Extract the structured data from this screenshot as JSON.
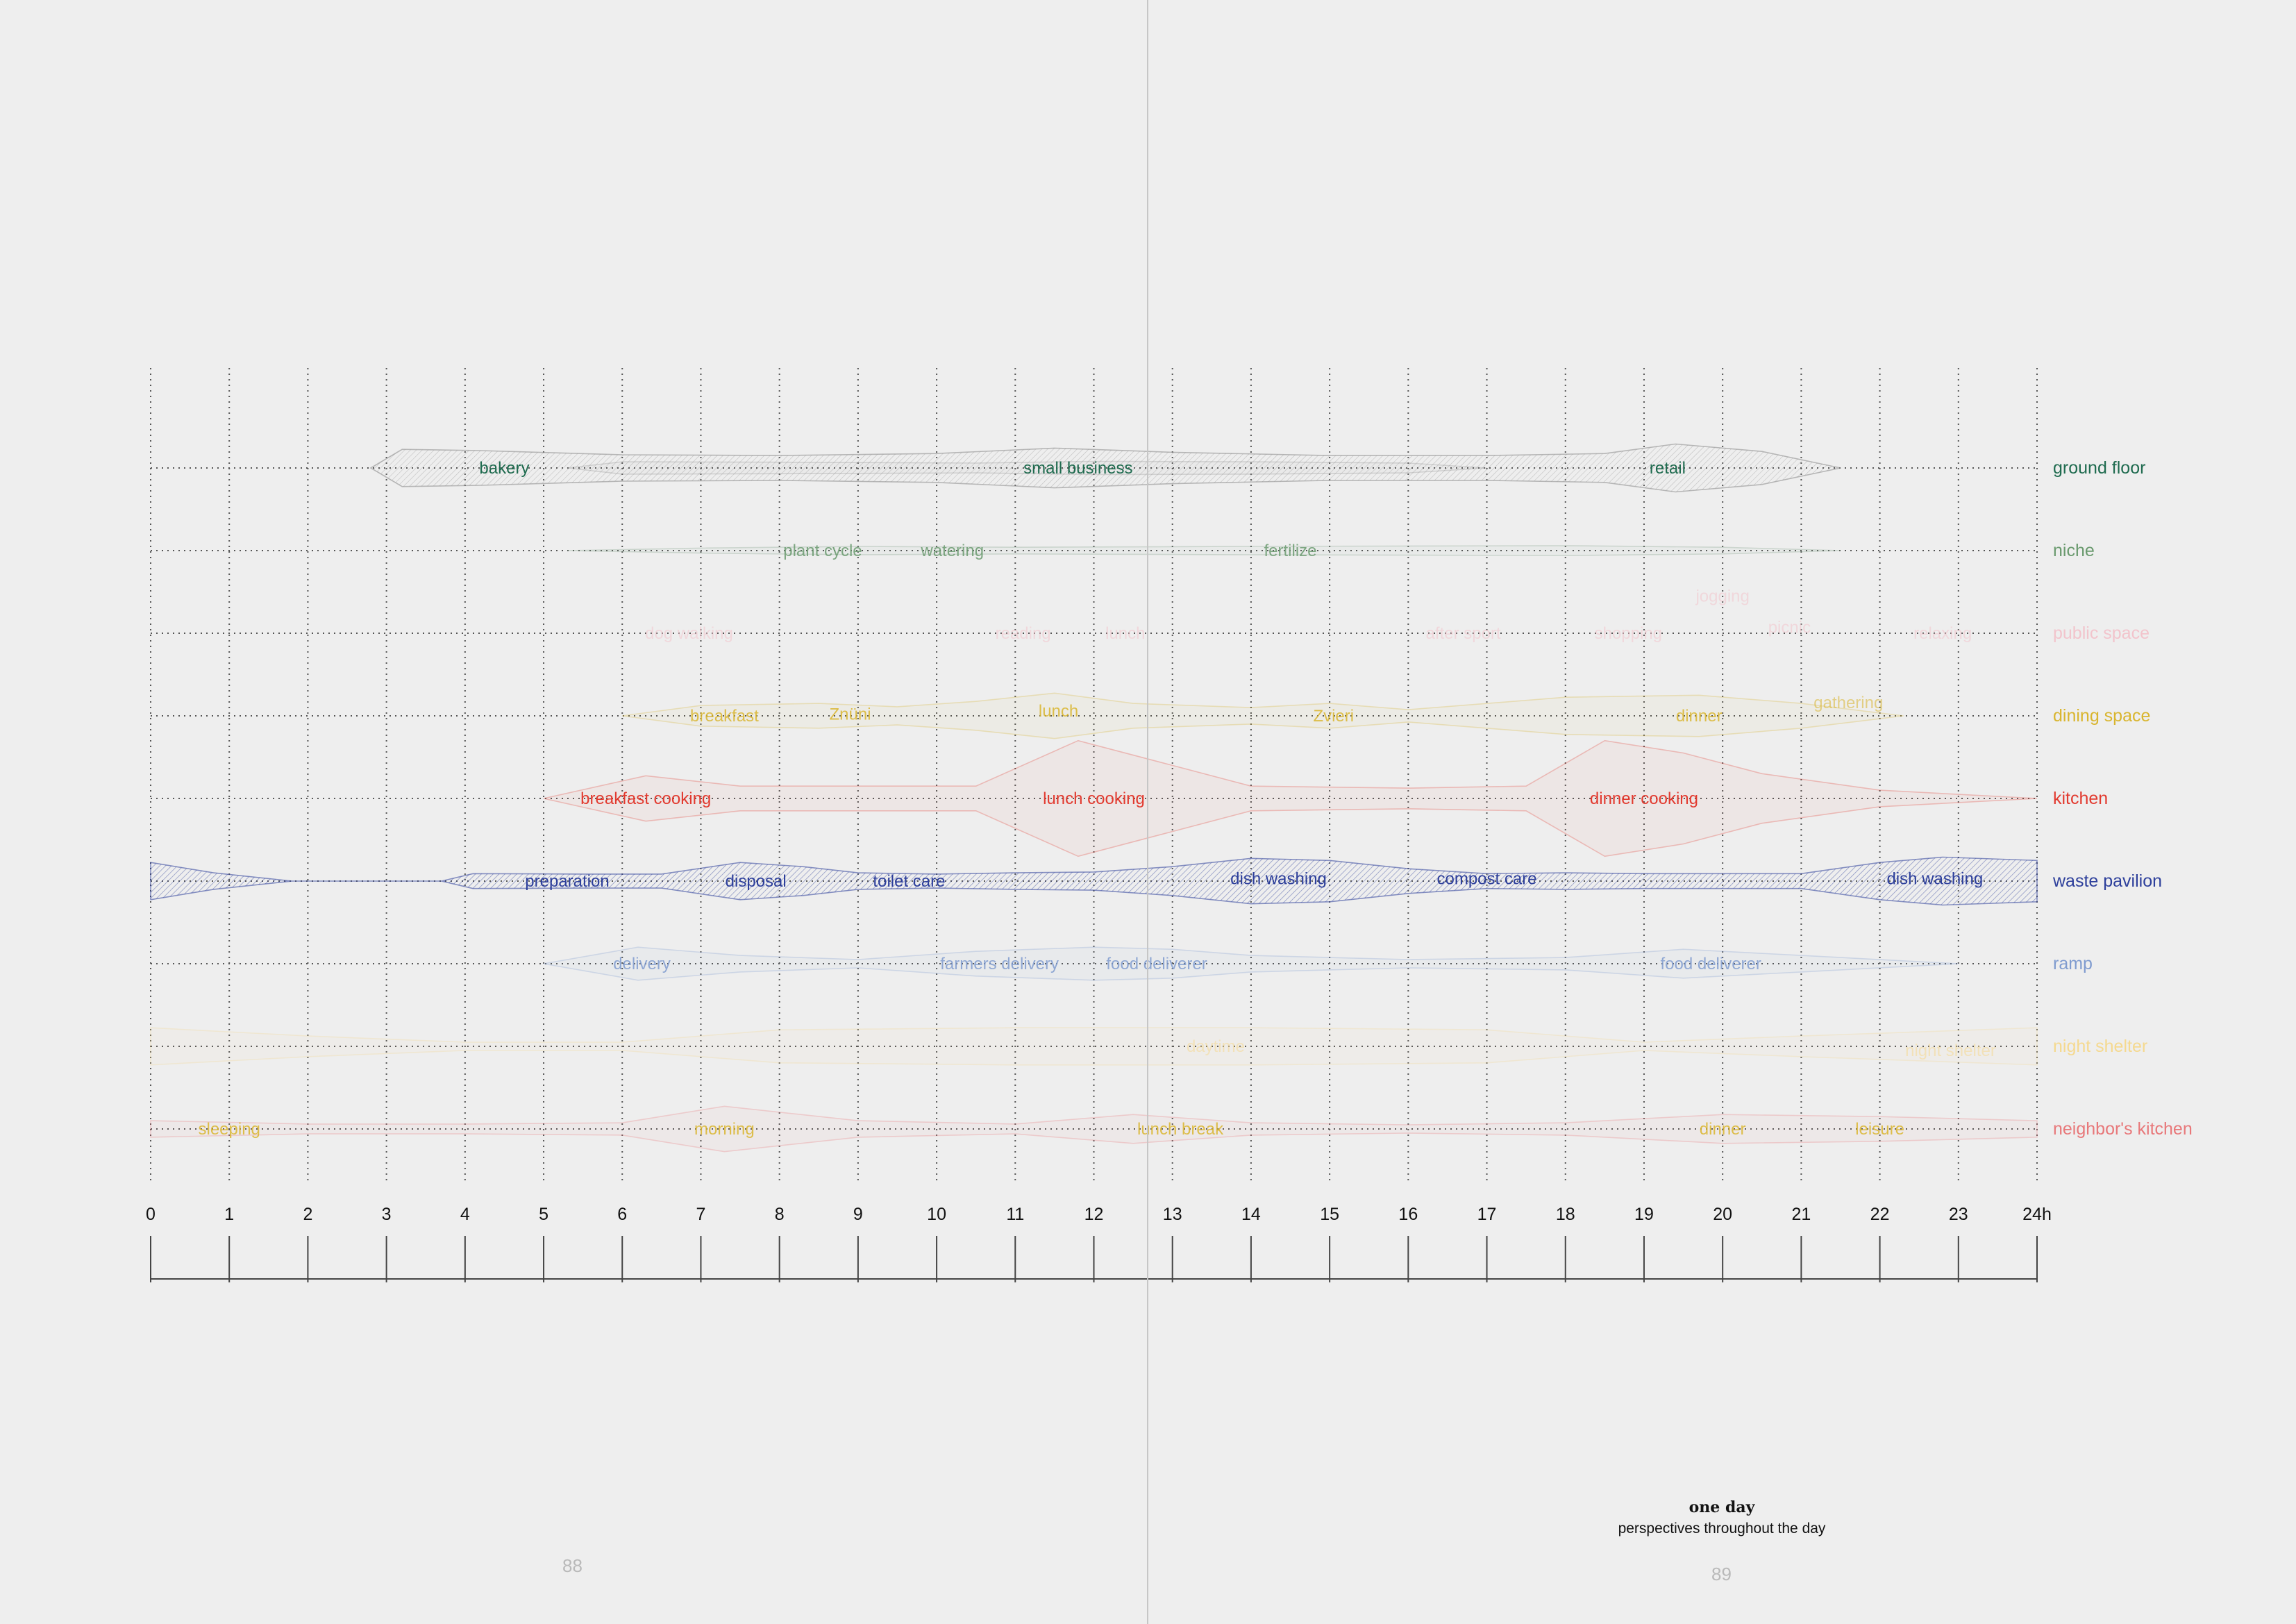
{
  "chart_data": {
    "type": "area",
    "x_ticks": [
      "0",
      "1",
      "2",
      "3",
      "4",
      "5",
      "6",
      "7",
      "8",
      "9",
      "10",
      "11",
      "12",
      "13",
      "14",
      "15",
      "16",
      "17",
      "18",
      "19",
      "20",
      "21",
      "22",
      "23",
      "24h"
    ],
    "x_range": [
      0,
      24
    ],
    "grid": true,
    "rows": [
      {
        "name": "ground floor",
        "color": "#1f6b4f"
      },
      {
        "name": "niche",
        "color": "#6a9a6e"
      },
      {
        "name": "public space",
        "color": "#f2c4cc"
      },
      {
        "name": "dining space",
        "color": "#d9b52e"
      },
      {
        "name": "kitchen",
        "color": "#e23a2f"
      },
      {
        "name": "waste pavilion",
        "color": "#2d3f9b"
      },
      {
        "name": "ramp",
        "color": "#7f9bcf"
      },
      {
        "name": "night shelter",
        "color": "#f5d98f"
      },
      {
        "name": "neighbor's kitchen",
        "color": "#e8787a"
      }
    ],
    "activities": [
      {
        "label": "bakery",
        "row": 0,
        "x": 4.5,
        "emphasis": "strong"
      },
      {
        "label": "small business",
        "row": 0,
        "x": 11.8,
        "emphasis": "strong"
      },
      {
        "label": "retail",
        "row": 0,
        "x": 19.3,
        "emphasis": "strong"
      },
      {
        "label": "plant cycle",
        "row": 1,
        "x": 8.55,
        "emphasis": "medium"
      },
      {
        "label": "watering",
        "row": 1,
        "x": 10.2,
        "emphasis": "medium"
      },
      {
        "label": "fertilize",
        "row": 1,
        "x": 14.5,
        "emphasis": "medium"
      },
      {
        "label": "dog walking",
        "row": 2,
        "x": 6.85,
        "emphasis": "faint"
      },
      {
        "label": "reading",
        "row": 2,
        "x": 11.1,
        "emphasis": "faint"
      },
      {
        "label": "lunch",
        "row": 2,
        "x": 12.4,
        "emphasis": "faint"
      },
      {
        "label": "after sport",
        "row": 2,
        "x": 16.7,
        "emphasis": "faint"
      },
      {
        "label": "shopping",
        "row": 2,
        "x": 18.8,
        "emphasis": "faint"
      },
      {
        "label": "jogging",
        "row": 2,
        "x": 20.0,
        "dy": -0.45,
        "emphasis": "faint"
      },
      {
        "label": "picnic",
        "row": 2,
        "x": 20.85,
        "dy": -0.07,
        "emphasis": "faint"
      },
      {
        "label": "relaxing",
        "row": 2,
        "x": 22.8,
        "emphasis": "faint"
      },
      {
        "label": "breakfast",
        "row": 3,
        "x": 7.3,
        "emphasis": "medium"
      },
      {
        "label": "Znüni",
        "row": 3,
        "x": 8.9,
        "dy": -0.02,
        "emphasis": "medium"
      },
      {
        "label": "lunch",
        "row": 3,
        "x": 11.55,
        "dy": -0.06,
        "emphasis": "medium"
      },
      {
        "label": "Zvieri",
        "row": 3,
        "x": 15.05,
        "emphasis": "medium"
      },
      {
        "label": "dinner",
        "row": 3,
        "x": 19.7,
        "emphasis": "medium"
      },
      {
        "label": "gathering",
        "row": 3,
        "x": 21.6,
        "dy": -0.16,
        "emphasis": "faint"
      },
      {
        "label": "breakfast cooking",
        "row": 4,
        "x": 6.3,
        "emphasis": "strong"
      },
      {
        "label": "lunch cooking",
        "row": 4,
        "x": 12.0,
        "emphasis": "strong"
      },
      {
        "label": "dinner cooking",
        "row": 4,
        "x": 19.0,
        "emphasis": "strong"
      },
      {
        "label": "preparation",
        "row": 5,
        "x": 5.3,
        "emphasis": "strong"
      },
      {
        "label": "disposal",
        "row": 5,
        "x": 7.7,
        "emphasis": "strong"
      },
      {
        "label": "toilet care",
        "row": 5,
        "x": 9.65,
        "emphasis": "strong"
      },
      {
        "label": "dish washing",
        "row": 5,
        "x": 14.35,
        "dy": -0.03,
        "emphasis": "strong"
      },
      {
        "label": "compost care",
        "row": 5,
        "x": 17.0,
        "dy": -0.03,
        "emphasis": "strong"
      },
      {
        "label": "dish washing",
        "row": 5,
        "x": 22.7,
        "dy": -0.03,
        "emphasis": "strong"
      },
      {
        "label": "delivery",
        "row": 6,
        "x": 6.25,
        "emphasis": "medium"
      },
      {
        "label": "farmers delivery",
        "row": 6,
        "x": 10.8,
        "emphasis": "medium"
      },
      {
        "label": "food deliverer",
        "row": 6,
        "x": 12.8,
        "emphasis": "medium"
      },
      {
        "label": "food deliverer",
        "row": 6,
        "x": 19.85,
        "emphasis": "medium"
      },
      {
        "label": "daytime",
        "row": 7,
        "x": 13.55,
        "emphasis": "faint"
      },
      {
        "label": "night shelter",
        "row": 7,
        "x": 22.9,
        "dy": 0.05,
        "emphasis": "faint"
      },
      {
        "label": "sleeping",
        "row": 8,
        "x": 1.0,
        "emphasis": "medium",
        "color": "#d9b52e"
      },
      {
        "label": "morning",
        "row": 8,
        "x": 7.3,
        "emphasis": "medium",
        "color": "#d9b52e"
      },
      {
        "label": "lunch break",
        "row": 8,
        "x": 13.1,
        "emphasis": "medium",
        "color": "#d9b52e"
      },
      {
        "label": "dinner",
        "row": 8,
        "x": 20.0,
        "emphasis": "medium",
        "color": "#d9b52e"
      },
      {
        "label": "leisure",
        "row": 8,
        "x": 22.0,
        "emphasis": "medium",
        "color": "#d9b52e"
      }
    ],
    "bands": [
      {
        "row": 0,
        "color": "#888888",
        "hatch": true,
        "points": [
          [
            2.8,
            0
          ],
          [
            3.2,
            0.45
          ],
          [
            4.2,
            0.42
          ],
          [
            6,
            0.32
          ],
          [
            8,
            0.3
          ],
          [
            10,
            0.35
          ],
          [
            11.5,
            0.48
          ],
          [
            13,
            0.38
          ],
          [
            15,
            0.3
          ],
          [
            17,
            0.3
          ],
          [
            18.5,
            0.35
          ],
          [
            19.4,
            0.58
          ],
          [
            20.5,
            0.4
          ],
          [
            21.5,
            0
          ]
        ]
      },
      {
        "row": 0,
        "color": "#888888",
        "hatch": false,
        "points": [
          [
            5.3,
            0
          ],
          [
            6,
            0.15
          ],
          [
            8,
            0.14
          ],
          [
            10.5,
            0.12
          ],
          [
            12,
            0.16
          ],
          [
            14,
            0.15
          ],
          [
            16,
            0.12
          ],
          [
            17,
            0
          ]
        ]
      },
      {
        "row": 1,
        "color": "#7a9a80",
        "hatch": false,
        "points": [
          [
            5.3,
            0
          ],
          [
            7,
            0.06
          ],
          [
            9,
            0.1
          ],
          [
            11,
            0.08
          ],
          [
            14,
            0.1
          ],
          [
            18,
            0.12
          ],
          [
            20,
            0.08
          ],
          [
            21.5,
            0
          ]
        ]
      },
      {
        "row": 3,
        "color": "#d9b52e",
        "hatch": false,
        "points": [
          [
            6,
            0
          ],
          [
            7,
            0.25
          ],
          [
            8.5,
            0.3
          ],
          [
            9.5,
            0.22
          ],
          [
            10.5,
            0.35
          ],
          [
            11.5,
            0.55
          ],
          [
            12.5,
            0.3
          ],
          [
            14,
            0.2
          ],
          [
            15,
            0.3
          ],
          [
            16,
            0.15
          ],
          [
            18,
            0.45
          ],
          [
            19.7,
            0.5
          ],
          [
            21,
            0.3
          ],
          [
            22.3,
            0
          ]
        ]
      },
      {
        "row": 4,
        "color": "#e23a2f",
        "hatch": false,
        "points": [
          [
            5,
            0
          ],
          [
            6.3,
            0.55
          ],
          [
            7.5,
            0.3
          ],
          [
            9,
            0.3
          ],
          [
            10.5,
            0.3
          ],
          [
            11.8,
            1.4
          ],
          [
            13,
            0.8
          ],
          [
            14,
            0.3
          ],
          [
            16,
            0.25
          ],
          [
            17.5,
            0.3
          ],
          [
            18.5,
            1.4
          ],
          [
            19.5,
            1.1
          ],
          [
            20.5,
            0.6
          ],
          [
            22,
            0.2
          ],
          [
            24,
            0
          ]
        ]
      },
      {
        "row": 5,
        "color": "#2d3f9b",
        "hatch": true,
        "points": [
          [
            0,
            0.45
          ],
          [
            0.8,
            0.2
          ],
          [
            1.8,
            0
          ],
          [
            3.7,
            0
          ],
          [
            4.1,
            0.18
          ],
          [
            5.5,
            0.17
          ],
          [
            6.5,
            0.17
          ],
          [
            7.5,
            0.45
          ],
          [
            8.3,
            0.35
          ],
          [
            9,
            0.2
          ],
          [
            10,
            0.17
          ],
          [
            11,
            0.2
          ],
          [
            12,
            0.22
          ],
          [
            13,
            0.35
          ],
          [
            14,
            0.55
          ],
          [
            15,
            0.5
          ],
          [
            16,
            0.3
          ],
          [
            17,
            0.18
          ],
          [
            18,
            0.2
          ],
          [
            19,
            0.18
          ],
          [
            21,
            0.18
          ],
          [
            22,
            0.45
          ],
          [
            22.8,
            0.58
          ],
          [
            24,
            0.5
          ]
        ]
      },
      {
        "row": 6,
        "color": "#7f9bcf",
        "hatch": false,
        "points": [
          [
            5,
            0
          ],
          [
            6.2,
            0.4
          ],
          [
            7.5,
            0.2
          ],
          [
            9,
            0.1
          ],
          [
            10.5,
            0.3
          ],
          [
            12,
            0.4
          ],
          [
            13,
            0.35
          ],
          [
            14,
            0.2
          ],
          [
            16,
            0.1
          ],
          [
            18,
            0.15
          ],
          [
            19.5,
            0.35
          ],
          [
            21,
            0.2
          ],
          [
            23,
            0
          ]
        ]
      },
      {
        "row": 7,
        "color": "#f5d98f",
        "hatch": false,
        "points": [
          [
            0,
            0.45
          ],
          [
            2,
            0.25
          ],
          [
            4,
            0.1
          ],
          [
            6,
            0.1
          ],
          [
            8,
            0.4
          ],
          [
            11,
            0.45
          ],
          [
            14,
            0.45
          ],
          [
            17,
            0.4
          ],
          [
            19,
            0.1
          ],
          [
            21,
            0.25
          ],
          [
            24,
            0.45
          ]
        ]
      },
      {
        "row": 8,
        "color": "#e8787a",
        "hatch": false,
        "points": [
          [
            0,
            0.2
          ],
          [
            2,
            0.12
          ],
          [
            4,
            0.12
          ],
          [
            6,
            0.15
          ],
          [
            7.3,
            0.55
          ],
          [
            9,
            0.2
          ],
          [
            11,
            0.12
          ],
          [
            12.5,
            0.35
          ],
          [
            14,
            0.15
          ],
          [
            16,
            0.1
          ],
          [
            18,
            0.15
          ],
          [
            20,
            0.35
          ],
          [
            22,
            0.3
          ],
          [
            24,
            0.2
          ]
        ]
      }
    ]
  },
  "page": {
    "left_page_number": "88",
    "right_page_number": "89",
    "caption_title": "one day",
    "caption_subtitle": "perspectives throughout the day"
  }
}
